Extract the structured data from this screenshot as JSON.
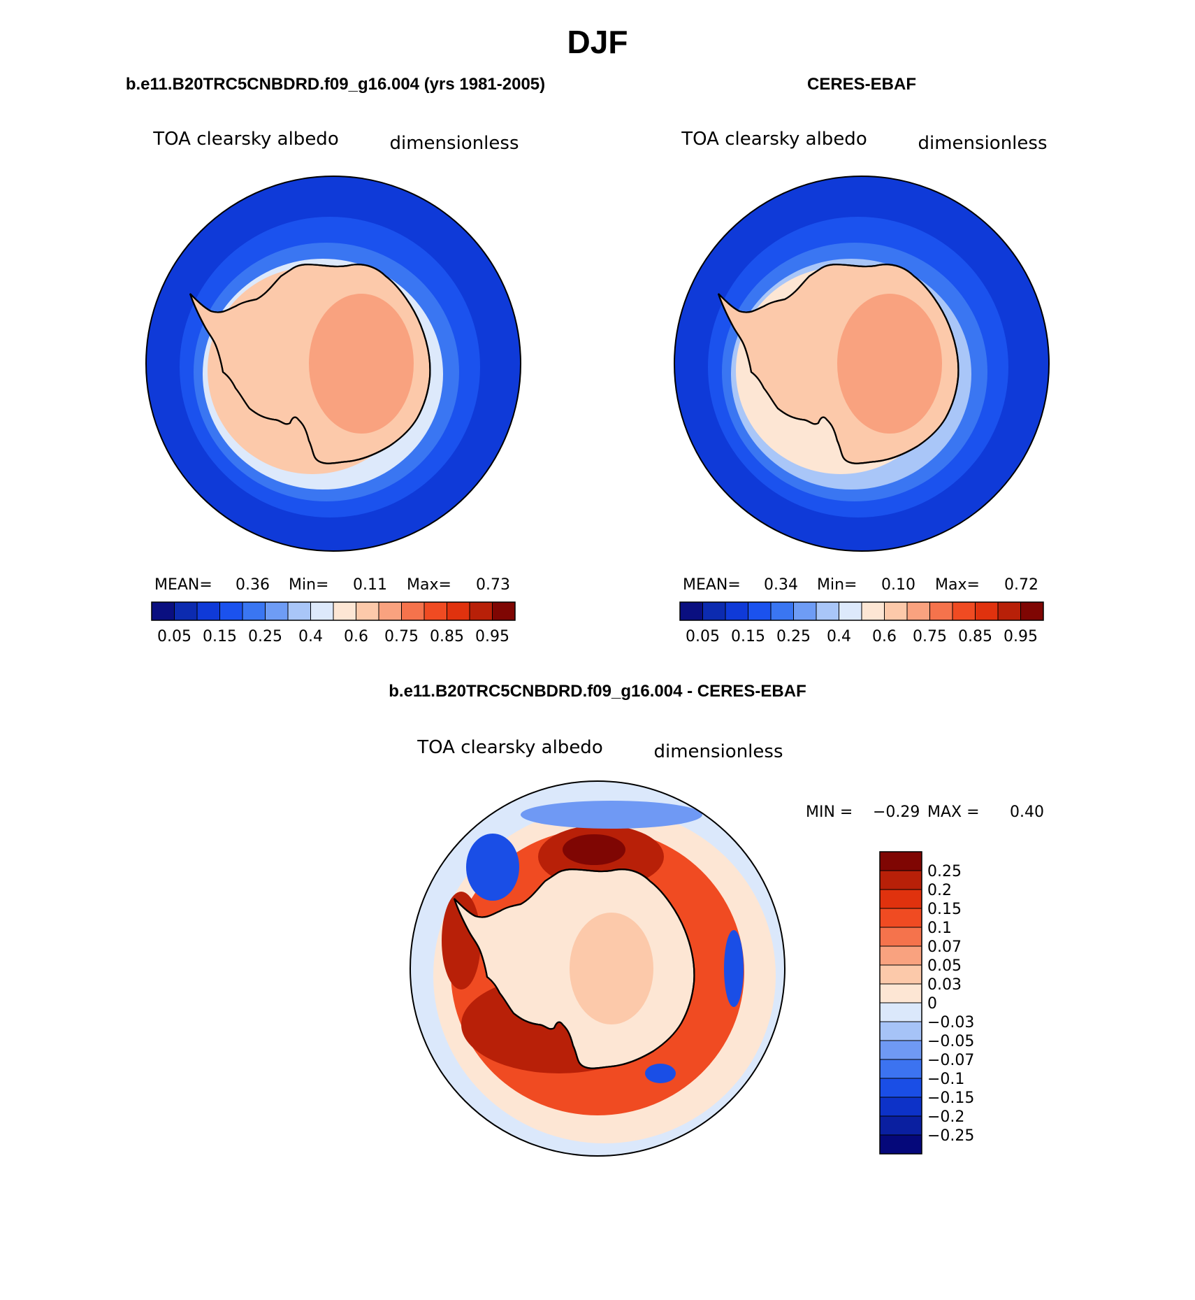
{
  "figure": {
    "title": "DJF"
  },
  "chart_data": [
    {
      "type": "heatmap",
      "projection": "south polar stereographic",
      "title": "b.e11.B20TRC5CNBDRD.f09_g16.004 (yrs 1981-2005)",
      "variable": "TOA clearsky albedo",
      "units": "dimensionless",
      "stats": {
        "mean_label": "MEAN=",
        "mean": "0.36",
        "min_label": "Min=",
        "min": "0.11",
        "max_label": "Max=",
        "max": "0.73"
      },
      "field_levels": {
        "open_ocean": 0.12,
        "outer_ring": 0.17,
        "mid_ring": 0.22,
        "ice_edge": 0.35,
        "sea_ice": 0.5,
        "coast": 0.55,
        "plateau": 0.65
      },
      "colorbar": {
        "orientation": "horizontal",
        "levels": [
          0.05,
          0.1,
          0.15,
          0.2,
          0.25,
          0.3,
          0.35,
          0.4,
          0.5,
          0.6,
          0.7,
          0.75,
          0.8,
          0.85,
          0.9,
          0.95
        ],
        "tick_labels": [
          "0.05",
          "0.15",
          "0.25",
          "0.4",
          "0.6",
          "0.75",
          "0.85",
          "0.95"
        ]
      }
    },
    {
      "type": "heatmap",
      "projection": "south polar stereographic",
      "title": "CERES-EBAF",
      "variable": "TOA clearsky albedo",
      "units": "dimensionless",
      "stats": {
        "mean_label": "MEAN=",
        "mean": "0.34",
        "min_label": "Min=",
        "min": "0.10",
        "max_label": "Max=",
        "max": "0.72"
      },
      "field_levels": {
        "open_ocean": 0.12,
        "outer_ring": 0.17,
        "mid_ring": 0.22,
        "ice_edge": 0.3,
        "sea_ice": 0.45,
        "coast": 0.52,
        "plateau": 0.62
      },
      "colorbar": {
        "orientation": "horizontal",
        "levels": [
          0.05,
          0.1,
          0.15,
          0.2,
          0.25,
          0.3,
          0.35,
          0.4,
          0.5,
          0.6,
          0.7,
          0.75,
          0.8,
          0.85,
          0.9,
          0.95
        ],
        "tick_labels": [
          "0.05",
          "0.15",
          "0.25",
          "0.4",
          "0.6",
          "0.75",
          "0.85",
          "0.95"
        ]
      }
    },
    {
      "type": "heatmap",
      "projection": "south polar stereographic",
      "title": "b.e11.B20TRC5CNBDRD.f09_g16.004 - CERES-EBAF",
      "variable": "TOA clearsky albedo",
      "units": "dimensionless",
      "stats": {
        "min_label": "MIN =",
        "min": "−0.29",
        "max_label": "MAX =",
        "max": "0.40"
      },
      "field_levels": {
        "background": -0.01,
        "continent": 0.02,
        "ring_positive": 0.12,
        "ring_strong": 0.2,
        "ring_max": 0.28,
        "coastal_negative": -0.15
      },
      "colorbar": {
        "orientation": "vertical",
        "levels": [
          -0.25,
          -0.2,
          -0.15,
          -0.1,
          -0.07,
          -0.05,
          -0.03,
          0,
          0.03,
          0.05,
          0.07,
          0.1,
          0.15,
          0.2,
          0.25
        ],
        "tick_labels": [
          "0.25",
          "0.2",
          "0.15",
          "0.1",
          "0.07",
          "0.05",
          "0.03",
          "0",
          "−0.03",
          "−0.05",
          "−0.07",
          "−0.1",
          "−0.15",
          "−0.2",
          "−0.25"
        ]
      }
    }
  ],
  "palettes": {
    "albedo": [
      "#0a0f80",
      "#0c2bb0",
      "#0f3ad8",
      "#1b52ee",
      "#3a76f2",
      "#6e9cf5",
      "#a9c6f8",
      "#dde9fb",
      "#fde6d4",
      "#fcc9aa",
      "#f9a27f",
      "#f5734c",
      "#f04b22",
      "#e0320e",
      "#b82008",
      "#7f0603"
    ],
    "difference": [
      "#05087a",
      "#0a1fa0",
      "#0d32c8",
      "#1a4ee6",
      "#3c73f0",
      "#6f99f4",
      "#a6c3f7",
      "#dbe8fb",
      "#fde6d4",
      "#fcc9aa",
      "#f9a27f",
      "#f5734c",
      "#f04b22",
      "#e0320e",
      "#b82008",
      "#7f0603"
    ]
  }
}
